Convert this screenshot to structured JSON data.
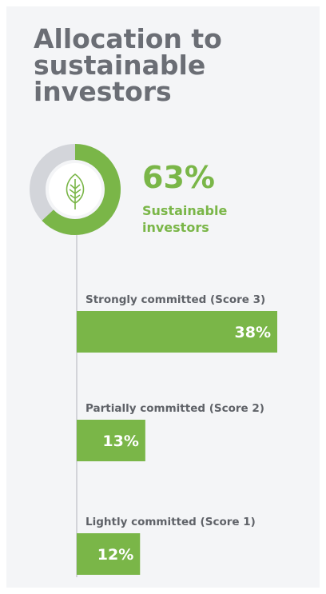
{
  "chart_data": [
    {
      "type": "pie",
      "title": "Allocation to sustainable investors",
      "categories": [
        "Sustainable investors"
      ],
      "values": [
        63
      ],
      "value_labels": [
        "63%"
      ],
      "color": "#7ab648",
      "rest_color": "#d3d5da"
    },
    {
      "type": "bar",
      "categories": [
        "Strongly committed (Score 3)",
        "Partially committed (Score 2)",
        "Lightly committed (Score 1)"
      ],
      "values": [
        38,
        13,
        12
      ],
      "value_labels": [
        "38%",
        "13%",
        "12%"
      ],
      "color": "#7ab648"
    }
  ]
}
